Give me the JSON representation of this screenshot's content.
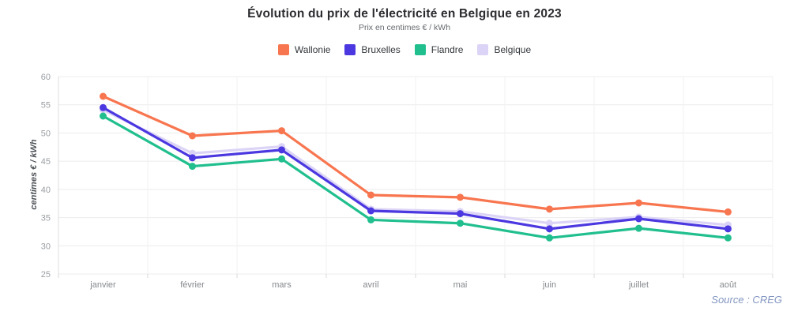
{
  "chart": {
    "title": "Évolution du prix de l'électricité en Belgique en 2023",
    "subtitle": "Prix en centimes  € / kWh",
    "source": "Source : CREG"
  },
  "chart_data": {
    "type": "line",
    "title": "Évolution du prix de l'électricité en Belgique en 2023",
    "subtitle": "Prix en centimes € / kWh",
    "categories": [
      "janvier",
      "février",
      "mars",
      "avril",
      "mai",
      "juin",
      "juillet",
      "août"
    ],
    "series": [
      {
        "name": "Wallonie",
        "color": "#f8764f",
        "values": [
          56.5,
          49.5,
          50.4,
          39.0,
          38.6,
          36.5,
          37.6,
          36.0
        ]
      },
      {
        "name": "Bruxelles",
        "color": "#4b38e0",
        "values": [
          54.5,
          45.6,
          47.0,
          36.2,
          35.7,
          33.0,
          34.8,
          33.0
        ]
      },
      {
        "name": "Flandre",
        "color": "#21bf8e",
        "values": [
          53.0,
          44.1,
          45.4,
          34.6,
          34.0,
          31.4,
          33.1,
          31.4
        ]
      },
      {
        "name": "Belgique",
        "color": "#dcd4f6",
        "values": [
          54.1,
          46.4,
          47.6,
          36.5,
          36.1,
          34.0,
          35.1,
          33.7
        ]
      }
    ],
    "xlabel": "",
    "ylabel": "centimes € / kWh",
    "ylim": [
      25,
      60
    ],
    "ytick_step": 5,
    "grid": true,
    "legend_position": "top",
    "source": "Source : CREG"
  }
}
